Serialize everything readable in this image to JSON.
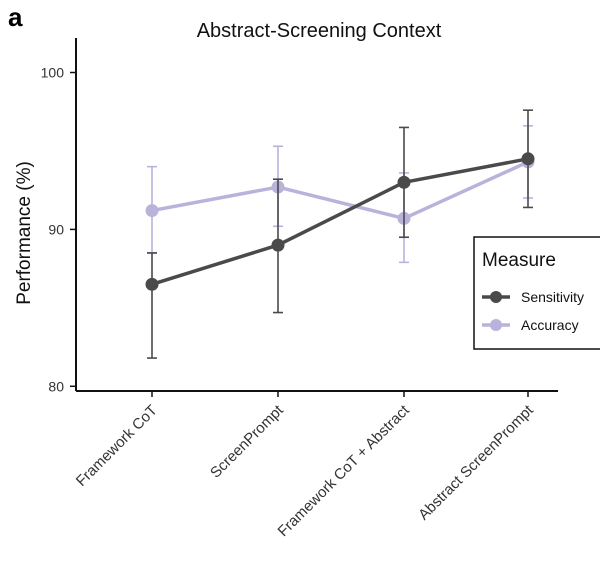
{
  "panel_label": "a",
  "chart_data": {
    "type": "line",
    "title": "Abstract-Screening Context",
    "xlabel": "",
    "ylabel": "Performance (%)",
    "categories": [
      "Framework CoT",
      "ScreenPrompt",
      "Framework CoT + Abstract",
      "Abstract ScreenPrompt"
    ],
    "ylim": [
      79.7,
      102.2
    ],
    "yticks": [
      80,
      90,
      100
    ],
    "grid": false,
    "legend_position": "right",
    "legend_title": "Measure",
    "series": [
      {
        "name": "Sensitivity",
        "color": "#4a4a4a",
        "values": [
          86.5,
          89.0,
          93.0,
          94.5
        ],
        "error_low": [
          81.8,
          84.7,
          89.5,
          91.4
        ],
        "error_high": [
          88.5,
          93.2,
          96.5,
          97.6
        ]
      },
      {
        "name": "Accuracy",
        "color": "#b9b3dc",
        "values": [
          91.2,
          92.7,
          90.7,
          94.3
        ],
        "error_low": [
          88.5,
          90.2,
          87.9,
          92.0
        ],
        "error_high": [
          94.0,
          95.3,
          93.6,
          96.6
        ]
      }
    ]
  }
}
